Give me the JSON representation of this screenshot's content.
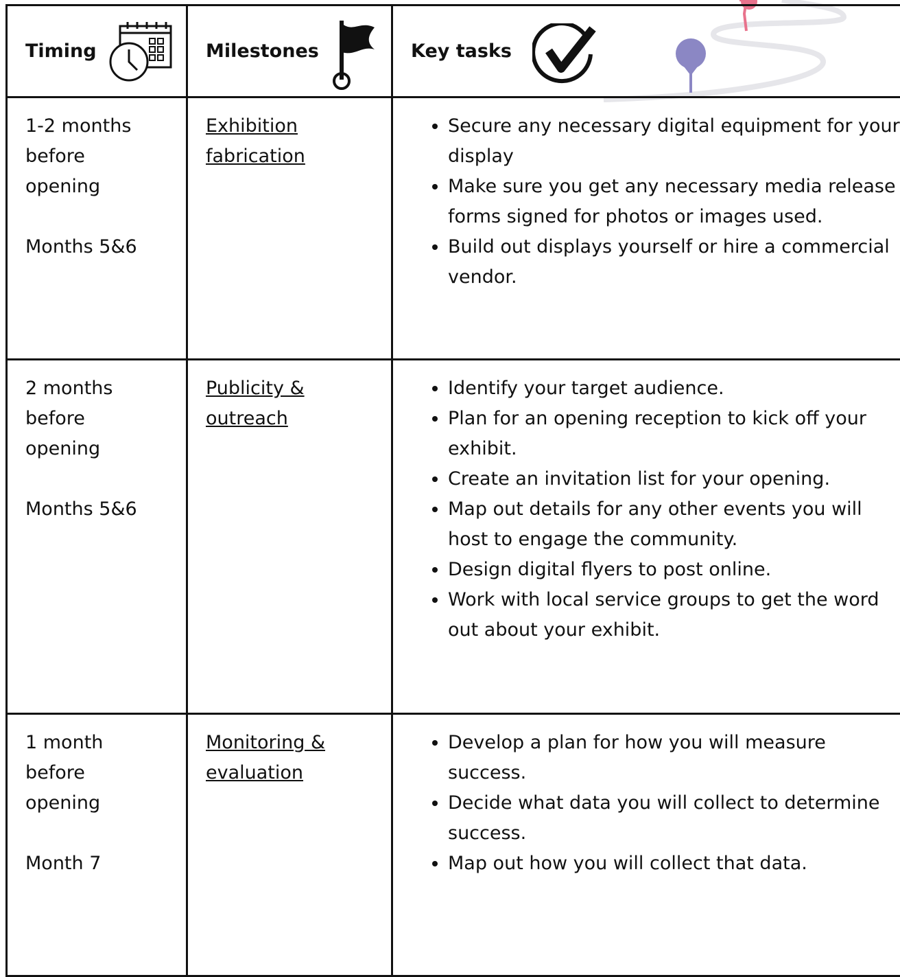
{
  "header": {
    "columns": [
      "Timing",
      "Milestones",
      "Key tasks"
    ]
  },
  "table": {
    "rows": [
      {
        "timing": "1-2 months before opening",
        "period": "Months 5&6",
        "milestone": "Exhibition fabrication",
        "tasks": [
          "Secure any necessary digital equipment for your display",
          "Make sure you get any necessary media release forms signed for photos or images used.",
          "Build out displays yourself or hire a commercial vendor."
        ]
      },
      {
        "timing": "2 months before opening",
        "period": "Months 5&6",
        "milestone": "Publicity & outreach",
        "tasks": [
          "Identify your target audience.",
          "Plan for an opening reception to kick off your exhibit.",
          "Create an invitation list for your opening.",
          "Map out details for any other events you will host to engage the community.",
          "Design digital flyers to post online.",
          "Work with local service groups to get the word out about your exhibit."
        ]
      },
      {
        "timing": "1 month before opening",
        "period": "Month 7",
        "milestone": "Monitoring & evaluation",
        "tasks": [
          "Develop a plan for how you will measure success.",
          "Decide what data you will collect to determine success.",
          "Map out how you will collect that data."
        ]
      }
    ]
  }
}
